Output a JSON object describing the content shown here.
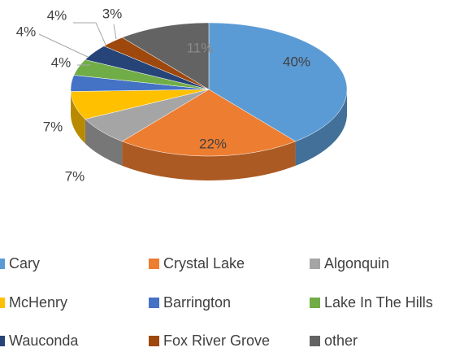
{
  "chart_data": {
    "type": "pie",
    "categories": [
      "Cary",
      "Crystal Lake",
      "Algonquin",
      "McHenry",
      "Barrington",
      "Lake In The Hills",
      "Wauconda",
      "Fox River Grove",
      "other"
    ],
    "values": [
      40,
      22,
      7,
      7,
      4,
      4,
      4,
      3,
      11
    ],
    "value_labels": [
      "40%",
      "22%",
      "7%",
      "7%",
      "4%",
      "4%",
      "4%",
      "3%",
      "11%"
    ],
    "colors": [
      "#5b9bd5",
      "#ed7d31",
      "#a5a5a5",
      "#ffc000",
      "#4472c4",
      "#70ad47",
      "#264478",
      "#9e480e",
      "#636363"
    ],
    "legend": "bottom"
  }
}
